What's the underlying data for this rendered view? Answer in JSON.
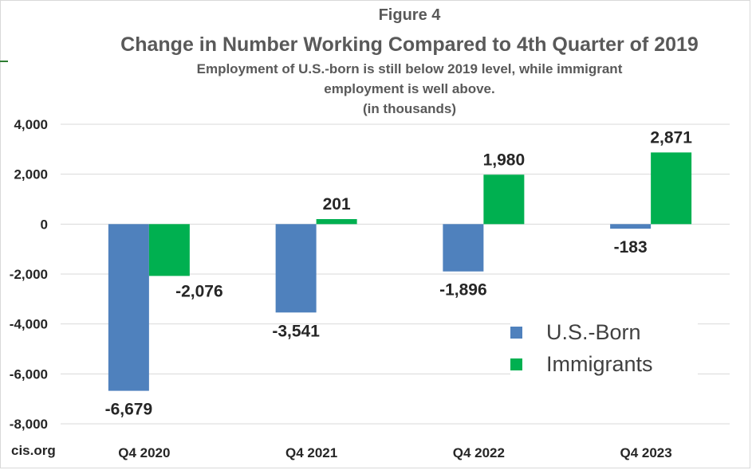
{
  "figure_label": "Figure 4",
  "source": "cis.org",
  "colors": {
    "us_born": "#4f81bd",
    "immigrants": "#00b050",
    "grid": "#d9d9d9",
    "text": "#595959"
  },
  "chart_data": {
    "type": "bar",
    "title": "Change in Number Working Compared to 4th Quarter of 2019",
    "subtitle": [
      "Employment of U.S.-born is still below 2019 level, while immigrant",
      "employment is well above.",
      "(in thousands)"
    ],
    "xlabel": "",
    "ylabel": "",
    "ylim": [
      -8000,
      4000
    ],
    "yticks": [
      4000,
      2000,
      0,
      -2000,
      -4000,
      -6000,
      -8000
    ],
    "ytick_labels": [
      "4,000",
      "2,000",
      "0",
      "-2,000",
      "-4,000",
      "-6,000",
      "-8,000"
    ],
    "categories": [
      "Q4 2020",
      "Q4 2021",
      "Q4 2022",
      "Q4 2023"
    ],
    "series": [
      {
        "name": "U.S.-Born",
        "values": [
          -6679,
          -3541,
          -1896,
          -183
        ],
        "labels": [
          "-6,679",
          "-3,541",
          "-1,896",
          "-183"
        ]
      },
      {
        "name": "Immigrants",
        "values": [
          -2076,
          201,
          1980,
          2871
        ],
        "labels": [
          "-2,076",
          "201",
          "1,980",
          "2,871"
        ]
      }
    ],
    "grid": true,
    "legend_position": "lower-right"
  }
}
